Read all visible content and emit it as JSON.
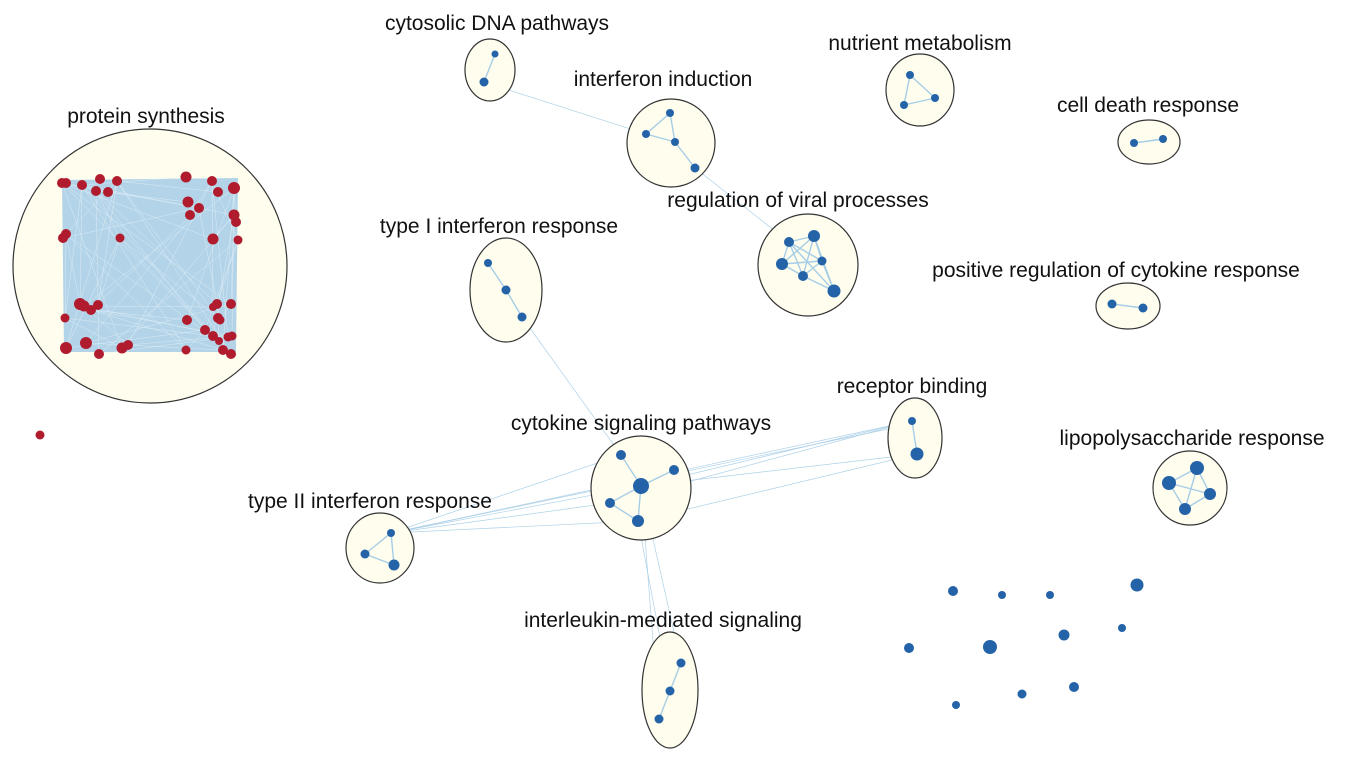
{
  "colors": {
    "background": "#ffffff",
    "cluster_fill": "#fefdee",
    "cluster_stroke": "#333333",
    "edge": "#a6cde6",
    "node_blue": "#2463a8",
    "node_red": "#b01c2e"
  },
  "clusters": [
    {
      "id": "protein-synthesis",
      "label": "protein synthesis",
      "node_color": "red"
    },
    {
      "id": "cytosolic-dna",
      "label": "cytosolic DNA pathways",
      "node_color": "blue"
    },
    {
      "id": "interferon-induction",
      "label": "interferon induction",
      "node_color": "blue"
    },
    {
      "id": "nutrient-metabolism",
      "label": "nutrient metabolism",
      "node_color": "blue"
    },
    {
      "id": "cell-death",
      "label": "cell death response",
      "node_color": "blue"
    },
    {
      "id": "viral-processes",
      "label": "regulation of viral processes",
      "node_color": "blue"
    },
    {
      "id": "type1-ifn",
      "label": "type I interferon response",
      "node_color": "blue"
    },
    {
      "id": "pos-cytokine",
      "label": "positive regulation of cytokine response",
      "node_color": "blue"
    },
    {
      "id": "receptor-binding",
      "label": "receptor binding",
      "node_color": "blue"
    },
    {
      "id": "cytokine-signaling",
      "label": "cytokine signaling pathways",
      "node_color": "blue"
    },
    {
      "id": "lps-response",
      "label": "lipopolysaccharide response",
      "node_color": "blue"
    },
    {
      "id": "type2-ifn",
      "label": "type II interferon response",
      "node_color": "blue"
    },
    {
      "id": "interleukin",
      "label": "interleukin-mediated signaling",
      "node_color": "blue"
    }
  ]
}
